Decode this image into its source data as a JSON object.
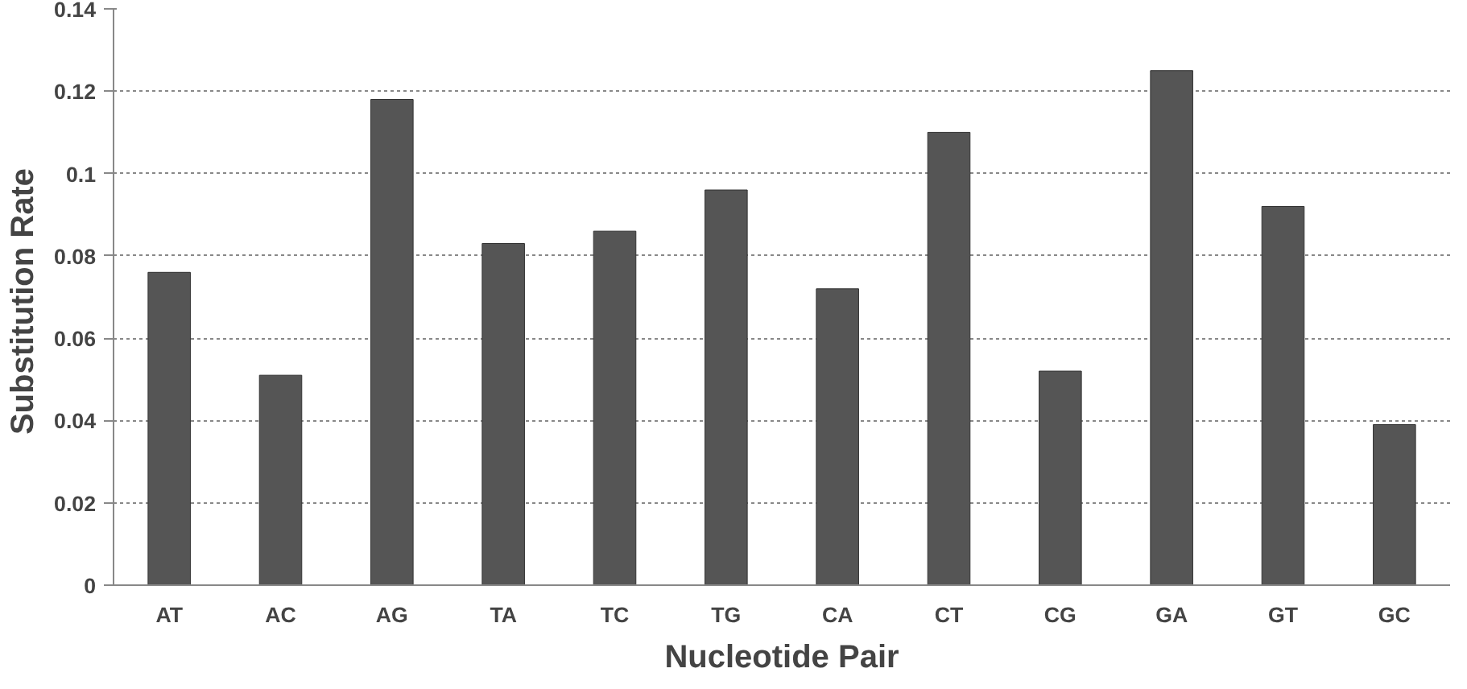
{
  "chart_data": {
    "type": "bar",
    "xlabel": "Nucleotide Pair",
    "ylabel": "Substitution  Rate",
    "categories": [
      "AT",
      "AC",
      "AG",
      "TA",
      "TC",
      "TG",
      "CA",
      "CT",
      "CG",
      "GA",
      "GT",
      "GC"
    ],
    "values": [
      0.076,
      0.051,
      0.118,
      0.083,
      0.086,
      0.096,
      0.072,
      0.11,
      0.052,
      0.125,
      0.092,
      0.039
    ],
    "color": "#555555",
    "ylim": [
      0,
      0.14
    ],
    "yticks": [
      0,
      0.02,
      0.04,
      0.06,
      0.08,
      {
        "value": 0.1,
        "label": "0.1"
      },
      0.12,
      0.14
    ],
    "grid": "y"
  }
}
